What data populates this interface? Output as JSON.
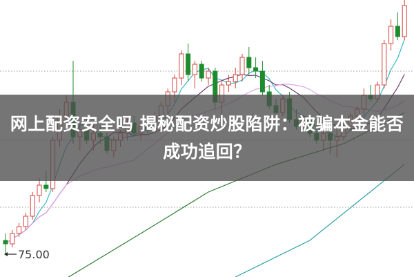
{
  "headline": "网上配资安全吗 揭秘配资炒股陷阱：被骗本金能否成功追回？",
  "colors": {
    "up": "#d0403a",
    "down": "#1e8c2e",
    "ma5": "#35b8c4",
    "ma10": "#6b3a6b",
    "ma20": "#e2a6e6",
    "ma_long1": "#2e7d32",
    "ma_long2": "#2aa0a8",
    "banner": "#4e4e4e",
    "grid": "#9a9a9a"
  },
  "chart_data": {
    "type": "candlestick",
    "annotation": "75.00",
    "annotation_icon": "arrow-left-icon",
    "grid": "horizontal-dotted",
    "ohlc": [
      [
        77,
        78,
        75,
        76.5
      ],
      [
        76.5,
        78.5,
        76,
        78
      ],
      [
        78,
        79.5,
        77.5,
        79
      ],
      [
        79,
        81,
        78.5,
        80.5
      ],
      [
        80.5,
        84,
        80,
        83.5
      ],
      [
        83.5,
        86,
        82.5,
        85
      ],
      [
        85,
        87,
        84,
        84.5
      ],
      [
        84.5,
        92,
        84,
        91.5
      ],
      [
        91.5,
        96,
        90.5,
        95
      ],
      [
        95,
        98,
        93,
        97
      ],
      [
        97,
        103,
        91,
        92
      ],
      [
        92,
        94,
        90,
        93
      ],
      [
        93,
        95,
        91,
        91.5
      ],
      [
        91.5,
        94,
        90,
        92.5
      ],
      [
        92.5,
        93.5,
        91,
        92
      ],
      [
        92,
        92.5,
        89.5,
        90
      ],
      [
        90,
        92,
        89,
        91.5
      ],
      [
        91.5,
        93,
        90.5,
        92.5
      ],
      [
        92.5,
        95,
        91.5,
        94
      ],
      [
        94,
        95,
        92,
        92.5
      ],
      [
        92.5,
        94,
        91.5,
        93.5
      ],
      [
        93.5,
        95,
        92.5,
        93
      ],
      [
        93,
        95.5,
        92.5,
        95
      ],
      [
        95,
        97,
        94,
        96.5
      ],
      [
        96.5,
        99,
        95,
        98.5
      ],
      [
        98.5,
        101,
        97,
        100.5
      ],
      [
        100.5,
        104.5,
        99.5,
        104
      ],
      [
        104,
        105.5,
        100,
        101
      ],
      [
        101,
        103,
        99,
        102.5
      ],
      [
        102.5,
        103,
        100,
        100.5
      ],
      [
        100.5,
        102,
        99.5,
        101.5
      ],
      [
        101.5,
        102,
        96,
        97
      ],
      [
        97,
        100,
        95,
        99.5
      ],
      [
        99.5,
        101,
        98.5,
        100
      ],
      [
        100,
        102,
        99,
        101
      ],
      [
        101,
        104,
        100,
        103.5
      ],
      [
        103.5,
        105,
        101,
        102
      ],
      [
        102,
        103.5,
        100.5,
        101.5
      ],
      [
        101.5,
        103,
        98,
        98.5
      ],
      [
        98.5,
        99.5,
        96,
        96.5
      ],
      [
        96.5,
        97.5,
        95,
        95.5
      ],
      [
        95.5,
        98,
        95,
        97.5
      ],
      [
        97.5,
        98.5,
        94,
        94.5
      ],
      [
        94.5,
        96,
        93,
        93.5
      ],
      [
        93.5,
        95,
        93,
        94.5
      ],
      [
        94.5,
        95,
        92,
        92.5
      ],
      [
        92.5,
        93.5,
        91,
        91.5
      ],
      [
        91.5,
        93,
        90,
        92.5
      ],
      [
        92.5,
        93,
        89.5,
        91.5
      ],
      [
        91.5,
        93,
        89,
        92
      ],
      [
        92,
        94,
        91.5,
        93.5
      ],
      [
        93.5,
        95.5,
        93,
        95
      ],
      [
        95,
        96.5,
        94,
        96
      ],
      [
        96,
        99,
        95,
        98
      ],
      [
        98,
        99.5,
        97,
        97.5
      ],
      [
        97.5,
        100,
        97,
        99.5
      ],
      [
        99.5,
        106,
        99,
        105.5
      ],
      [
        105.5,
        109,
        104.5,
        108
      ],
      [
        108,
        110,
        106,
        106.5
      ],
      [
        106.5,
        112,
        106,
        111
      ]
    ],
    "moving_averages": [
      5,
      10,
      20
    ],
    "long_ma_1": [
      [
        9,
        71.5
      ],
      [
        20,
        78
      ],
      [
        30,
        84
      ],
      [
        40,
        88
      ],
      [
        50,
        91
      ],
      [
        59,
        95.5
      ]
    ],
    "long_ma_2": [
      [
        34,
        71.7
      ],
      [
        45,
        77
      ],
      [
        59,
        88
      ]
    ]
  }
}
